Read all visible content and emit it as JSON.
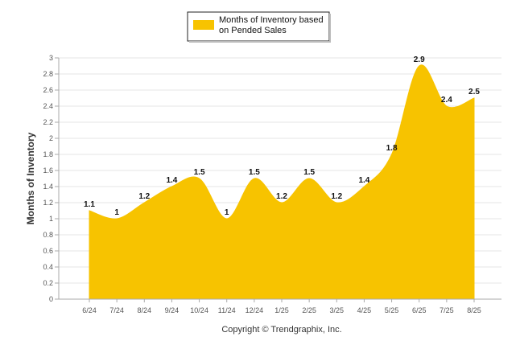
{
  "chart_data": {
    "type": "area",
    "categories": [
      "6/24",
      "7/24",
      "8/24",
      "9/24",
      "10/24",
      "11/24",
      "12/24",
      "1/25",
      "2/25",
      "3/25",
      "4/25",
      "5/25",
      "6/25",
      "7/25",
      "8/25"
    ],
    "series": [
      {
        "name": "Months of Inventory based on Pended Sales",
        "legend_lines": [
          "Months of Inventory based",
          "on Pended Sales"
        ],
        "values": [
          1.1,
          1,
          1.2,
          1.4,
          1.5,
          1,
          1.5,
          1.2,
          1.5,
          1.2,
          1.4,
          1.8,
          2.9,
          2.4,
          2.5
        ],
        "data_labels": [
          "1.1",
          "1",
          "1.2",
          "1.4",
          "1.5",
          "1",
          "1.5",
          "1.2",
          "1.5",
          "1.2",
          "1.4",
          "1.8",
          "2.9",
          "2.4",
          "2.5"
        ],
        "color": "#F7C300"
      }
    ],
    "ylabel": "Months of Inventory",
    "ylim": [
      0,
      3
    ],
    "yticks": [
      "0",
      "0.2",
      "0.4",
      "0.6",
      "0.8",
      "1",
      "1.2",
      "1.4",
      "1.6",
      "1.8",
      "2",
      "2.2",
      "2.4",
      "2.6",
      "2.8",
      "3"
    ],
    "grid": true,
    "legend_position": "top-center",
    "credit": "Copyright © Trendgraphix, Inc."
  }
}
